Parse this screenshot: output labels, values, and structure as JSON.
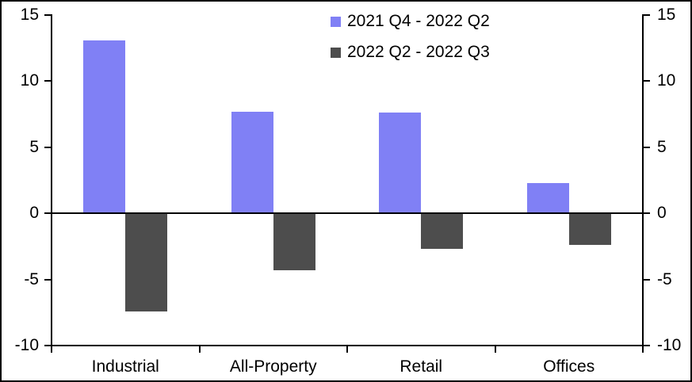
{
  "window": {
    "background": "#FFFFFF",
    "frame_border_color": "#000000"
  },
  "chart_data": {
    "type": "bar",
    "title": "",
    "xlabel": "",
    "ylabel": "",
    "categories": [
      "Industrial",
      "All-Property",
      "Retail",
      "Offices"
    ],
    "series": [
      {
        "name": "2021 Q4 - 2022 Q2",
        "color": "#8080F5",
        "values": [
          13.1,
          7.7,
          7.6,
          2.3
        ]
      },
      {
        "name": "2022 Q2 - 2022 Q3",
        "color": "#4D4D4D",
        "values": [
          -7.4,
          -4.3,
          -2.7,
          -2.4
        ]
      }
    ],
    "ylim": [
      -10,
      15
    ],
    "yticks": [
      15,
      10,
      5,
      0,
      -5,
      -10
    ],
    "y_axis_sides": [
      "left",
      "right"
    ],
    "grid": false,
    "zero_line": true,
    "legend_position": "top-center-right",
    "axis_color": "#000000",
    "text_color": "#000000"
  }
}
